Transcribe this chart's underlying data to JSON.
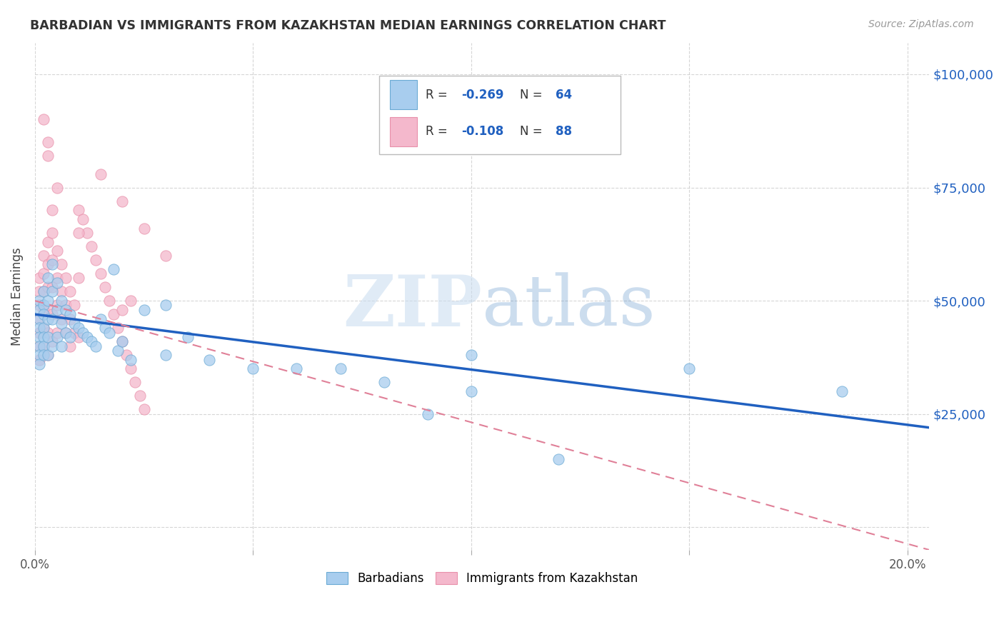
{
  "title": "BARBADIAN VS IMMIGRANTS FROM KAZAKHSTAN MEDIAN EARNINGS CORRELATION CHART",
  "source": "Source: ZipAtlas.com",
  "xlabel_label": "Barbadians",
  "xlabel_label2": "Immigrants from Kazakhstan",
  "ylabel": "Median Earnings",
  "x_ticks": [
    0.0,
    0.05,
    0.1,
    0.15,
    0.2
  ],
  "x_tick_labels": [
    "0.0%",
    "",
    "",
    "",
    "20.0%"
  ],
  "y_ticks": [
    0,
    25000,
    50000,
    75000,
    100000
  ],
  "y_tick_labels": [
    "",
    "$25,000",
    "$50,000",
    "$75,000",
    "$100,000"
  ],
  "xlim": [
    0.0,
    0.205
  ],
  "ylim": [
    -5000,
    107000
  ],
  "blue_R": -0.269,
  "blue_N": 64,
  "pink_R": -0.108,
  "pink_N": 88,
  "blue_color": "#A8CDEE",
  "pink_color": "#F4B8CC",
  "blue_edge_color": "#6AAAD4",
  "pink_edge_color": "#E890AA",
  "blue_line_color": "#2060C0",
  "pink_line_color": "#E08098",
  "watermark_zip": "ZIP",
  "watermark_atlas": "atlas",
  "blue_scatter_x": [
    0.001,
    0.001,
    0.001,
    0.001,
    0.001,
    0.001,
    0.001,
    0.001,
    0.002,
    0.002,
    0.002,
    0.002,
    0.002,
    0.002,
    0.002,
    0.003,
    0.003,
    0.003,
    0.003,
    0.003,
    0.004,
    0.004,
    0.004,
    0.004,
    0.005,
    0.005,
    0.005,
    0.006,
    0.006,
    0.006,
    0.007,
    0.007,
    0.008,
    0.008,
    0.009,
    0.01,
    0.011,
    0.012,
    0.013,
    0.014,
    0.015,
    0.016,
    0.017,
    0.018,
    0.019,
    0.02,
    0.022,
    0.025,
    0.03,
    0.035,
    0.04,
    0.05,
    0.06,
    0.07,
    0.08,
    0.09,
    0.1,
    0.12,
    0.15,
    0.185,
    0.03,
    0.1
  ],
  "blue_scatter_y": [
    50000,
    48000,
    46000,
    44000,
    42000,
    40000,
    38000,
    36000,
    52000,
    49000,
    47000,
    44000,
    42000,
    40000,
    38000,
    55000,
    50000,
    46000,
    42000,
    38000,
    58000,
    52000,
    46000,
    40000,
    54000,
    48000,
    42000,
    50000,
    45000,
    40000,
    48000,
    43000,
    47000,
    42000,
    45000,
    44000,
    43000,
    42000,
    41000,
    40000,
    46000,
    44000,
    43000,
    57000,
    39000,
    41000,
    37000,
    48000,
    38000,
    42000,
    37000,
    35000,
    35000,
    35000,
    32000,
    25000,
    38000,
    15000,
    35000,
    30000,
    49000,
    30000
  ],
  "pink_scatter_x": [
    0.001,
    0.001,
    0.001,
    0.001,
    0.001,
    0.001,
    0.001,
    0.002,
    0.002,
    0.002,
    0.002,
    0.002,
    0.002,
    0.003,
    0.003,
    0.003,
    0.003,
    0.003,
    0.003,
    0.004,
    0.004,
    0.004,
    0.004,
    0.004,
    0.005,
    0.005,
    0.005,
    0.005,
    0.006,
    0.006,
    0.006,
    0.007,
    0.007,
    0.007,
    0.008,
    0.008,
    0.008,
    0.009,
    0.009,
    0.01,
    0.01,
    0.01,
    0.011,
    0.012,
    0.013,
    0.014,
    0.015,
    0.016,
    0.017,
    0.018,
    0.019,
    0.02,
    0.021,
    0.022,
    0.023,
    0.024,
    0.025,
    0.005,
    0.01,
    0.015,
    0.02,
    0.025,
    0.03,
    0.003,
    0.004,
    0.02,
    0.022,
    0.002,
    0.003
  ],
  "pink_scatter_y": [
    55000,
    52000,
    49000,
    46000,
    43000,
    40000,
    37000,
    60000,
    56000,
    52000,
    48000,
    44000,
    40000,
    63000,
    58000,
    53000,
    48000,
    43000,
    38000,
    65000,
    59000,
    53000,
    47000,
    41000,
    61000,
    55000,
    49000,
    43000,
    58000,
    52000,
    46000,
    55000,
    49000,
    43000,
    52000,
    46000,
    40000,
    49000,
    43000,
    70000,
    55000,
    42000,
    68000,
    65000,
    62000,
    59000,
    56000,
    53000,
    50000,
    47000,
    44000,
    41000,
    38000,
    35000,
    32000,
    29000,
    26000,
    75000,
    65000,
    78000,
    72000,
    66000,
    60000,
    82000,
    70000,
    48000,
    50000,
    90000,
    85000
  ],
  "blue_line_x0": 0.0,
  "blue_line_y0": 47000,
  "blue_line_x1": 0.205,
  "blue_line_y1": 22000,
  "pink_line_x0": 0.0,
  "pink_line_y0": 50000,
  "pink_line_x1": 0.205,
  "pink_line_y1": -5000
}
